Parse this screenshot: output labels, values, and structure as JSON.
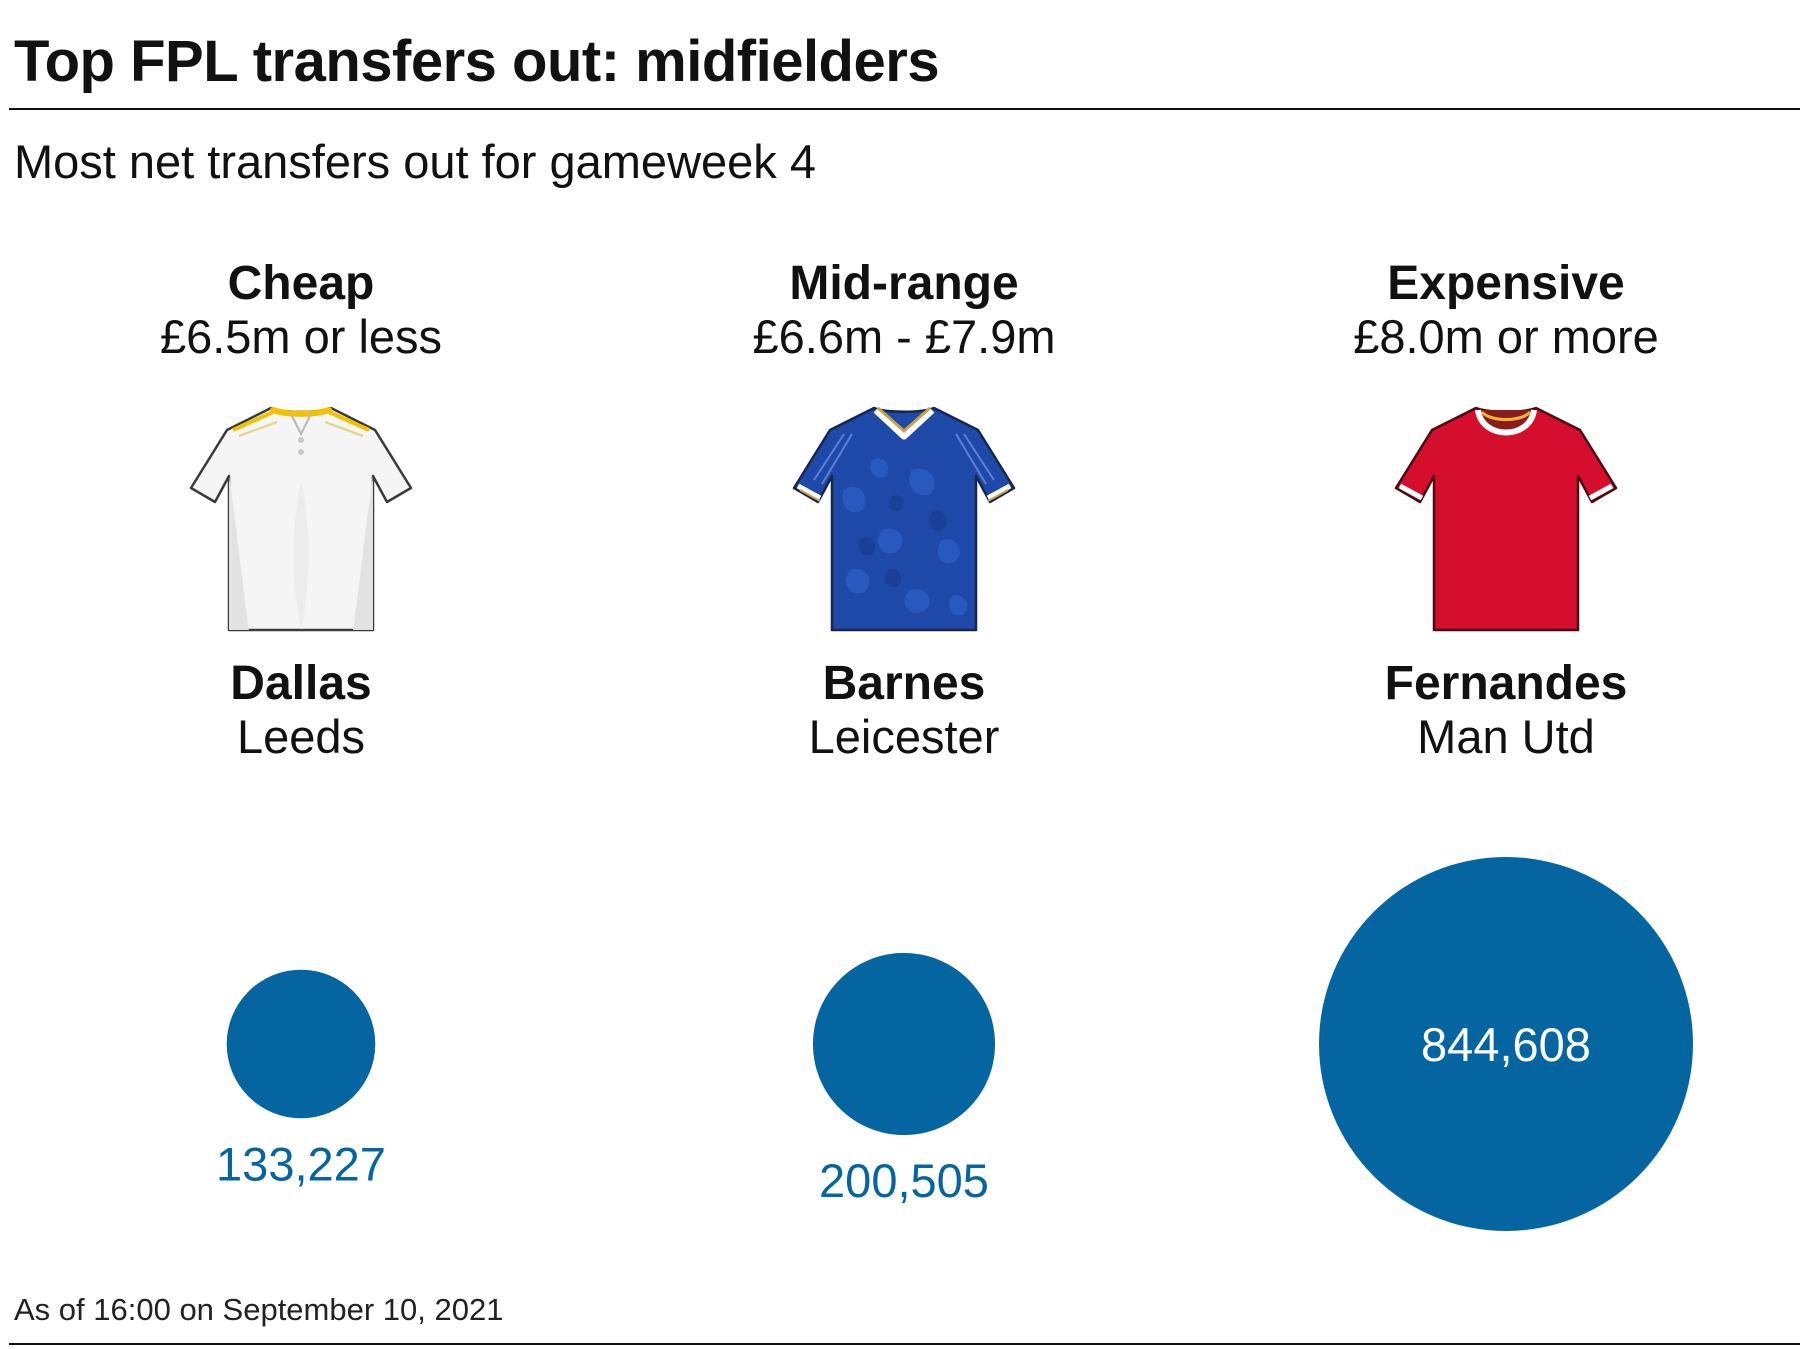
{
  "title": "Top FPL transfers out: midfielders",
  "subtitle": "Most net transfers out for gameweek 4",
  "footnote": "As of 16:00 on September 10, 2021",
  "colors": {
    "bubble": "#0565a1",
    "text": "#111111",
    "inside_label": "#ffffff"
  },
  "chart_data": {
    "type": "bubble",
    "metric": "net transfers out",
    "categories": [
      {
        "name": "Cheap",
        "price_range": "£6.5m or less",
        "player": "Dallas",
        "club": "Leeds",
        "kit_icon": "leeds-white-shirt-icon",
        "value": 133227,
        "value_label": "133,227",
        "label_position": "below"
      },
      {
        "name": "Mid-range",
        "price_range": "£6.6m - £7.9m",
        "player": "Barnes",
        "club": "Leicester",
        "kit_icon": "leicester-blue-shirt-icon",
        "value": 200505,
        "value_label": "200,505",
        "label_position": "below"
      },
      {
        "name": "Expensive",
        "price_range": "£8.0m or more",
        "player": "Fernandes",
        "club": "Man Utd",
        "kit_icon": "man-utd-red-shirt-icon",
        "value": 844608,
        "value_label": "844,608",
        "label_position": "inside"
      }
    ]
  }
}
